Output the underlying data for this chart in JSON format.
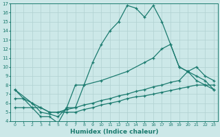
{
  "xlabel": "Humidex (Indice chaleur)",
  "xlim": [
    -0.5,
    23.5
  ],
  "ylim": [
    4,
    17
  ],
  "xticks": [
    0,
    1,
    2,
    3,
    4,
    5,
    6,
    7,
    8,
    9,
    10,
    11,
    12,
    13,
    14,
    15,
    16,
    17,
    18,
    19,
    20,
    21,
    22,
    23
  ],
  "yticks": [
    4,
    5,
    6,
    7,
    8,
    9,
    10,
    11,
    12,
    13,
    14,
    15,
    16,
    17
  ],
  "bg_color": "#cce8e8",
  "line_color": "#1a7a6e",
  "grid_color": "#b0d0d0",
  "lines": [
    {
      "x": [
        0,
        1,
        2,
        3,
        4,
        5,
        6,
        7,
        8,
        9,
        10,
        11,
        12,
        13,
        14,
        15,
        16,
        17,
        18,
        19,
        20,
        21,
        22,
        23
      ],
      "y": [
        7.5,
        6.5,
        5.5,
        4.5,
        4.5,
        3.8,
        5.5,
        5.5,
        8.0,
        10.5,
        12.5,
        14.0,
        15.0,
        16.8,
        16.5,
        15.5,
        16.8,
        15.0,
        12.5,
        10.0,
        9.5,
        8.5,
        8.0,
        7.5
      ]
    },
    {
      "x": [
        0,
        2,
        3,
        4,
        5,
        6,
        7,
        8,
        10,
        13,
        15,
        16,
        17,
        18,
        19,
        20,
        21,
        22,
        23
      ],
      "y": [
        7.5,
        6.0,
        5.0,
        4.8,
        4.5,
        5.5,
        8.0,
        8.0,
        8.5,
        9.5,
        10.5,
        11.0,
        12.0,
        12.5,
        10.0,
        9.5,
        9.0,
        8.5,
        7.5
      ]
    },
    {
      "x": [
        0,
        1,
        2,
        3,
        4,
        5,
        6,
        7,
        8,
        9,
        10,
        11,
        12,
        13,
        14,
        15,
        16,
        17,
        18,
        19,
        20,
        21,
        22,
        23
      ],
      "y": [
        6.5,
        6.5,
        6.0,
        5.5,
        5.0,
        5.0,
        5.3,
        5.5,
        5.8,
        6.0,
        6.3,
        6.5,
        6.8,
        7.0,
        7.3,
        7.5,
        7.8,
        8.0,
        8.3,
        8.5,
        9.5,
        10.0,
        9.0,
        8.5
      ]
    },
    {
      "x": [
        0,
        1,
        2,
        3,
        4,
        5,
        6,
        7,
        8,
        9,
        10,
        11,
        12,
        13,
        14,
        15,
        16,
        17,
        18,
        19,
        20,
        21,
        22,
        23
      ],
      "y": [
        5.5,
        5.5,
        5.5,
        5.5,
        5.0,
        5.0,
        5.0,
        5.0,
        5.3,
        5.5,
        5.8,
        6.0,
        6.2,
        6.5,
        6.7,
        6.8,
        7.0,
        7.2,
        7.4,
        7.6,
        7.8,
        8.0,
        8.0,
        8.0
      ]
    }
  ]
}
